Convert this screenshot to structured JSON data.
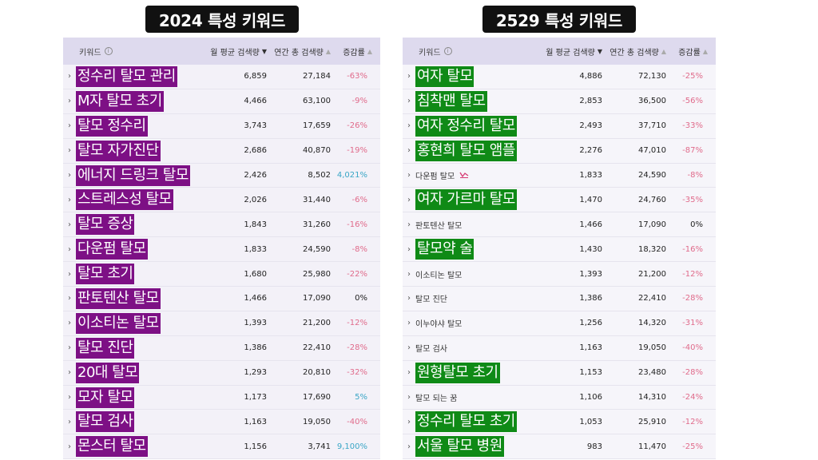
{
  "left": {
    "title": "2024 특성 키워드",
    "headers": {
      "keyword": "키워드",
      "info": "i",
      "avg": "월 평균 검색량",
      "total": "연간 총 검색량",
      "change": "증감률"
    },
    "rows": [
      {
        "kw": "정수리 탈모 관리",
        "avg": "6,859",
        "total": "27,184",
        "change": "-63%",
        "trend": "neg"
      },
      {
        "kw": "M자 탈모 초기",
        "avg": "4,466",
        "total": "63,100",
        "change": "-9%",
        "trend": "neg"
      },
      {
        "kw": "탈모 정수리",
        "avg": "3,743",
        "total": "17,659",
        "change": "-26%",
        "trend": "neg"
      },
      {
        "kw": "탈모 자가진단",
        "avg": "2,686",
        "total": "40,870",
        "change": "-19%",
        "trend": "neg"
      },
      {
        "kw": "에너지 드링크 탈모",
        "avg": "2,426",
        "total": "8,502",
        "change": "4,021%",
        "trend": "pos"
      },
      {
        "kw": "스트레스성 탈모",
        "avg": "2,026",
        "total": "31,440",
        "change": "-6%",
        "trend": "neg"
      },
      {
        "kw": "탈모 증상",
        "avg": "1,843",
        "total": "31,260",
        "change": "-16%",
        "trend": "neg"
      },
      {
        "kw": "다운펌 탈모",
        "avg": "1,833",
        "total": "24,590",
        "change": "-8%",
        "trend": "neg"
      },
      {
        "kw": "탈모 초기",
        "avg": "1,680",
        "total": "25,980",
        "change": "-22%",
        "trend": "neg"
      },
      {
        "kw": "판토텐산 탈모",
        "avg": "1,466",
        "total": "17,090",
        "change": "0%",
        "trend": "zero"
      },
      {
        "kw": "이소티논 탈모",
        "avg": "1,393",
        "total": "21,200",
        "change": "-12%",
        "trend": "neg"
      },
      {
        "kw": "탈모 진단",
        "avg": "1,386",
        "total": "22,410",
        "change": "-28%",
        "trend": "neg"
      },
      {
        "kw": "20대 탈모",
        "avg": "1,293",
        "total": "20,810",
        "change": "-32%",
        "trend": "neg"
      },
      {
        "kw": "모자 탈모",
        "avg": "1,173",
        "total": "17,690",
        "change": "5%",
        "trend": "pos"
      },
      {
        "kw": "탈모 검사",
        "avg": "1,163",
        "total": "19,050",
        "change": "-40%",
        "trend": "neg"
      },
      {
        "kw": "몬스터 탈모",
        "avg": "1,156",
        "total": "3,741",
        "change": "9,100%",
        "trend": "pos"
      }
    ]
  },
  "right": {
    "title": "2529 특성 키워드",
    "headers": {
      "keyword": "키워드",
      "info": "i",
      "avg": "월 평균 검색량",
      "total": "연간 총 검색량",
      "change": "증감률"
    },
    "rows": [
      {
        "kw": "여자 탈모",
        "avg": "4,886",
        "total": "72,130",
        "change": "-25%",
        "trend": "neg",
        "hl": true
      },
      {
        "kw": "침착맨 탈모",
        "avg": "2,853",
        "total": "36,500",
        "change": "-56%",
        "trend": "neg",
        "hl": true
      },
      {
        "kw": "여자 정수리 탈모",
        "avg": "2,493",
        "total": "37,710",
        "change": "-33%",
        "trend": "neg",
        "hl": true
      },
      {
        "kw": "홍현희 탈모 앰플",
        "avg": "2,276",
        "total": "47,010",
        "change": "-87%",
        "trend": "neg",
        "hl": true
      },
      {
        "kw": "다운펌 탈모",
        "avg": "1,833",
        "total": "24,590",
        "change": "-8%",
        "trend": "neg",
        "hl": false,
        "icon": "trend-chart-icon"
      },
      {
        "kw": "여자 가르마 탈모",
        "avg": "1,470",
        "total": "24,760",
        "change": "-35%",
        "trend": "neg",
        "hl": true
      },
      {
        "kw": "판토텐산 탈모",
        "avg": "1,466",
        "total": "17,090",
        "change": "0%",
        "trend": "zero",
        "hl": false
      },
      {
        "kw": "탈모약 술",
        "avg": "1,430",
        "total": "18,320",
        "change": "-16%",
        "trend": "neg",
        "hl": true
      },
      {
        "kw": "이소티논 탈모",
        "avg": "1,393",
        "total": "21,200",
        "change": "-12%",
        "trend": "neg",
        "hl": false
      },
      {
        "kw": "탈모 진단",
        "avg": "1,386",
        "total": "22,410",
        "change": "-28%",
        "trend": "neg",
        "hl": false
      },
      {
        "kw": "이누야샤 탈모",
        "avg": "1,256",
        "total": "14,320",
        "change": "-31%",
        "trend": "neg",
        "hl": false
      },
      {
        "kw": "탈모 검사",
        "avg": "1,163",
        "total": "19,050",
        "change": "-40%",
        "trend": "neg",
        "hl": false
      },
      {
        "kw": "원형탈모 초기",
        "avg": "1,153",
        "total": "23,480",
        "change": "-28%",
        "trend": "neg",
        "hl": true
      },
      {
        "kw": "탈모 되는 꿈",
        "avg": "1,106",
        "total": "14,310",
        "change": "-24%",
        "trend": "neg",
        "hl": false
      },
      {
        "kw": "정수리 탈모 초기",
        "avg": "1,053",
        "total": "25,910",
        "change": "-12%",
        "trend": "neg",
        "hl": true
      },
      {
        "kw": "서울 탈모 병원",
        "avg": "983",
        "total": "11,470",
        "change": "-25%",
        "trend": "neg",
        "hl": true
      }
    ]
  },
  "colors": {
    "left_highlight": "#7d1085",
    "right_highlight": "#0f8a16",
    "header_bg": "#dedaee",
    "negative": "#e06b8b",
    "positive": "#3aa6c6"
  }
}
